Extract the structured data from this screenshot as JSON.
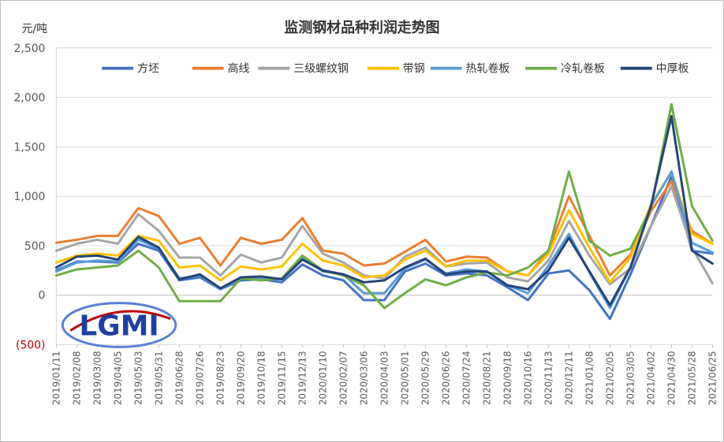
{
  "chart_data": {
    "type": "line",
    "title": "监测钢材品种利润走势图",
    "ylabel": "元/吨",
    "ylim": [
      -500,
      2500
    ],
    "yticks": [
      -500,
      0,
      500,
      1000,
      1500,
      2000,
      2500
    ],
    "ytick_labels": [
      "(500)",
      "0",
      "500",
      "1,000",
      "1,500",
      "2,000",
      "2,500"
    ],
    "grid": "horizontal",
    "legend_position": "top",
    "logo_text": "LGMI",
    "x": [
      "2019/01/11",
      "2019/02/08",
      "2019/03/08",
      "2019/04/05",
      "2019/05/03",
      "2019/05/31",
      "2019/06/28",
      "2019/07/26",
      "2019/08/23",
      "2019/09/20",
      "2019/10/18",
      "2019/11/15",
      "2019/12/13",
      "2020/01/10",
      "2020/02/07",
      "2020/03/06",
      "2020/04/03",
      "2020/05/01",
      "2020/05/29",
      "2020/06/26",
      "2020/07/24",
      "2020/08/21",
      "2020/09/18",
      "2020/10/16",
      "2020/11/13",
      "2020/12/11",
      "2021/01/08",
      "2021/02/05",
      "2021/03/05",
      "2021/04/02",
      "2021/04/30",
      "2021/05/28",
      "2021/06/25"
    ],
    "series": [
      {
        "name": "方坯",
        "color": "#4472c4",
        "values": [
          250,
          340,
          340,
          330,
          520,
          450,
          150,
          180,
          60,
          150,
          160,
          130,
          310,
          200,
          150,
          -50,
          -50,
          240,
          320,
          200,
          220,
          200,
          80,
          -50,
          220,
          250,
          50,
          -240,
          210,
          700,
          1200,
          450,
          420
        ]
      },
      {
        "name": "高线",
        "color": "#ed7d31",
        "values": [
          530,
          560,
          600,
          600,
          880,
          800,
          520,
          580,
          300,
          580,
          520,
          560,
          780,
          450,
          420,
          300,
          320,
          440,
          560,
          340,
          390,
          380,
          240,
          200,
          450,
          1000,
          600,
          200,
          410,
          850,
          1150,
          650,
          520
        ]
      },
      {
        "name": "三级螺纹钢",
        "color": "#a5a5a5",
        "values": [
          450,
          520,
          560,
          520,
          820,
          650,
          380,
          380,
          200,
          410,
          330,
          380,
          700,
          420,
          330,
          200,
          170,
          390,
          480,
          290,
          320,
          330,
          180,
          140,
          350,
          750,
          400,
          110,
          270,
          700,
          1100,
          480,
          120
        ]
      },
      {
        "name": "带钢",
        "color": "#ffc000",
        "values": [
          330,
          400,
          420,
          400,
          600,
          550,
          280,
          300,
          150,
          290,
          260,
          290,
          520,
          350,
          300,
          180,
          200,
          360,
          450,
          290,
          350,
          350,
          240,
          200,
          420,
          860,
          480,
          130,
          380,
          920,
          1240,
          620,
          520
        ]
      },
      {
        "name": "热轧卷板",
        "color": "#5b9bd5",
        "values": [
          240,
          330,
          350,
          340,
          560,
          470,
          170,
          200,
          60,
          170,
          170,
          160,
          380,
          240,
          210,
          20,
          20,
          270,
          360,
          220,
          260,
          240,
          100,
          20,
          300,
          620,
          230,
          -130,
          280,
          900,
          1250,
          530,
          430
        ]
      },
      {
        "name": "冷轧卷板",
        "color": "#70ad47",
        "values": [
          200,
          260,
          280,
          300,
          450,
          280,
          -60,
          -60,
          -60,
          170,
          150,
          170,
          400,
          250,
          200,
          100,
          -130,
          20,
          160,
          100,
          180,
          230,
          200,
          280,
          450,
          1250,
          550,
          400,
          470,
          880,
          1930,
          900,
          550
        ]
      },
      {
        "name": "中厚板",
        "color": "#264478",
        "values": [
          280,
          390,
          400,
          360,
          590,
          480,
          160,
          210,
          70,
          180,
          190,
          160,
          360,
          250,
          210,
          130,
          150,
          280,
          370,
          210,
          240,
          240,
          100,
          60,
          250,
          580,
          240,
          -100,
          280,
          900,
          1810,
          450,
          320
        ]
      }
    ]
  }
}
